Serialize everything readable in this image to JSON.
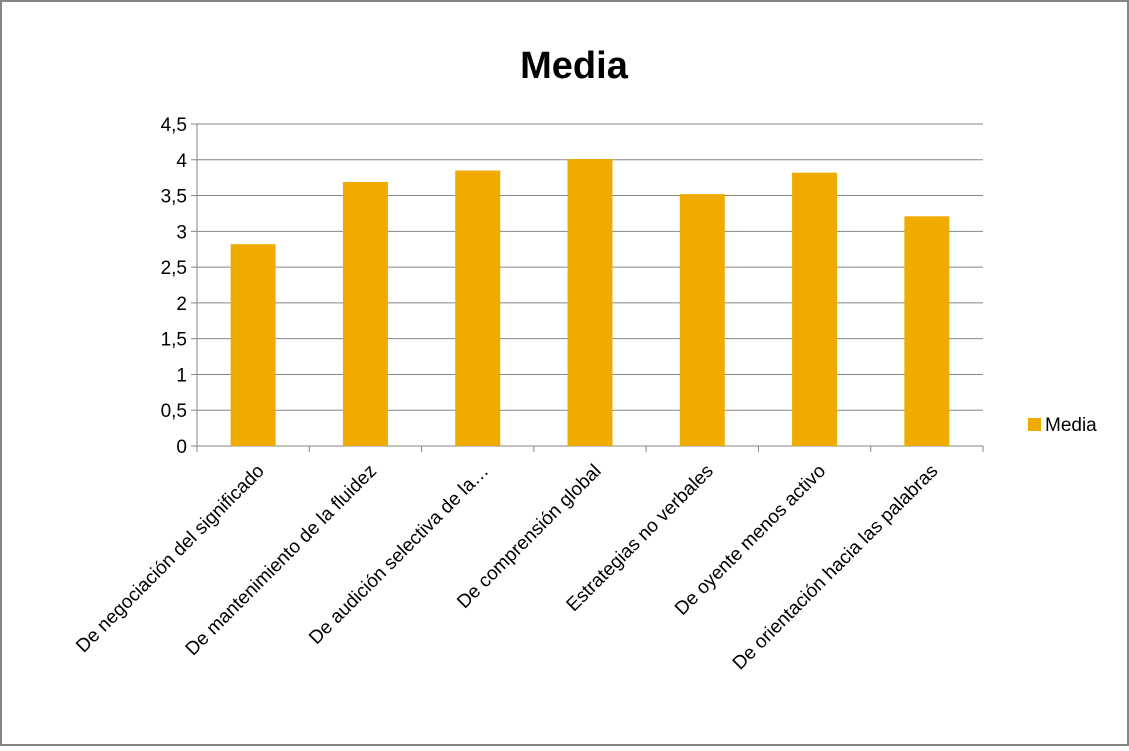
{
  "colors": {
    "bar": "#F0AB00",
    "grid": "#868686",
    "frame": "#868686",
    "background": "#FFFFFF"
  },
  "chart_data": {
    "type": "bar",
    "title": "Media",
    "xlabel": "",
    "ylabel": "",
    "categories": [
      "De negociación del significado",
      "De mantenimiento de la fluidez",
      "De audición selectiva de la…",
      "De comprensión global",
      "Estrategias no verbales",
      "De oyente menos activo",
      "De orientación hacia las palabras"
    ],
    "series": [
      {
        "name": "Media",
        "values": [
          2.82,
          3.69,
          3.85,
          4.01,
          3.52,
          3.82,
          3.21
        ]
      }
    ],
    "ylim": [
      0,
      4.5
    ],
    "yticks": [
      "0",
      "0,5",
      "1",
      "1,5",
      "2",
      "2,5",
      "3",
      "3,5",
      "4",
      "4,5"
    ],
    "grid": true,
    "legend": {
      "position": "right",
      "entries": [
        "Media"
      ]
    }
  }
}
